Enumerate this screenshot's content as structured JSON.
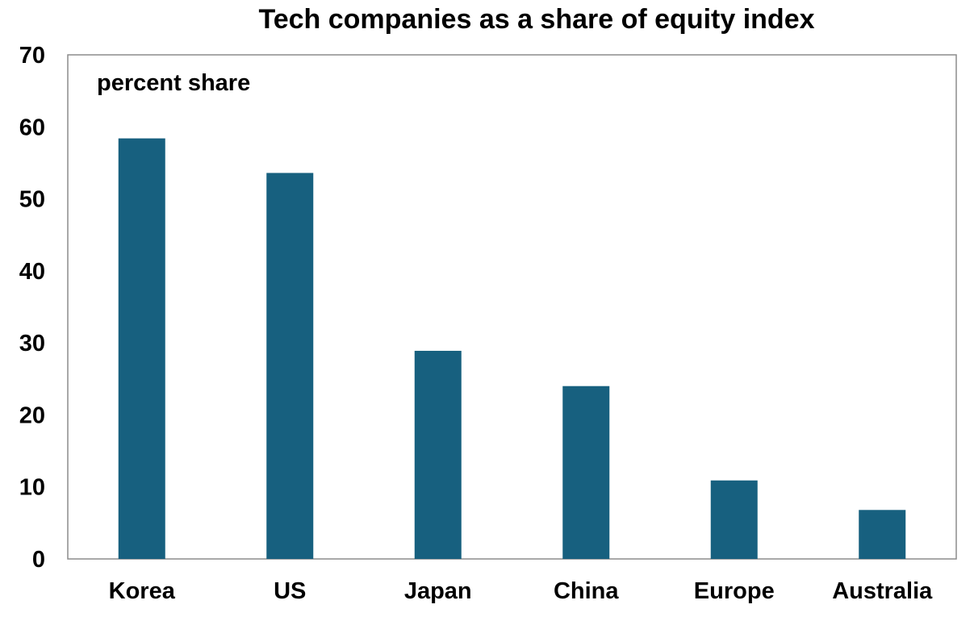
{
  "chart_data": {
    "type": "bar",
    "title": "Tech companies as a share of equity index",
    "unit_label": "percent share",
    "xlabel": "",
    "ylabel": "",
    "categories": [
      "Korea",
      "US",
      "Japan",
      "China",
      "Europe",
      "Australia"
    ],
    "values": [
      58.4,
      53.6,
      28.9,
      24.0,
      10.9,
      6.8
    ],
    "ylim": [
      0,
      70
    ],
    "yticks": [
      "0",
      "10",
      "20",
      "30",
      "40",
      "50",
      "60",
      "70"
    ],
    "grid": false,
    "legend": "none",
    "bar_color": "#17607f"
  }
}
